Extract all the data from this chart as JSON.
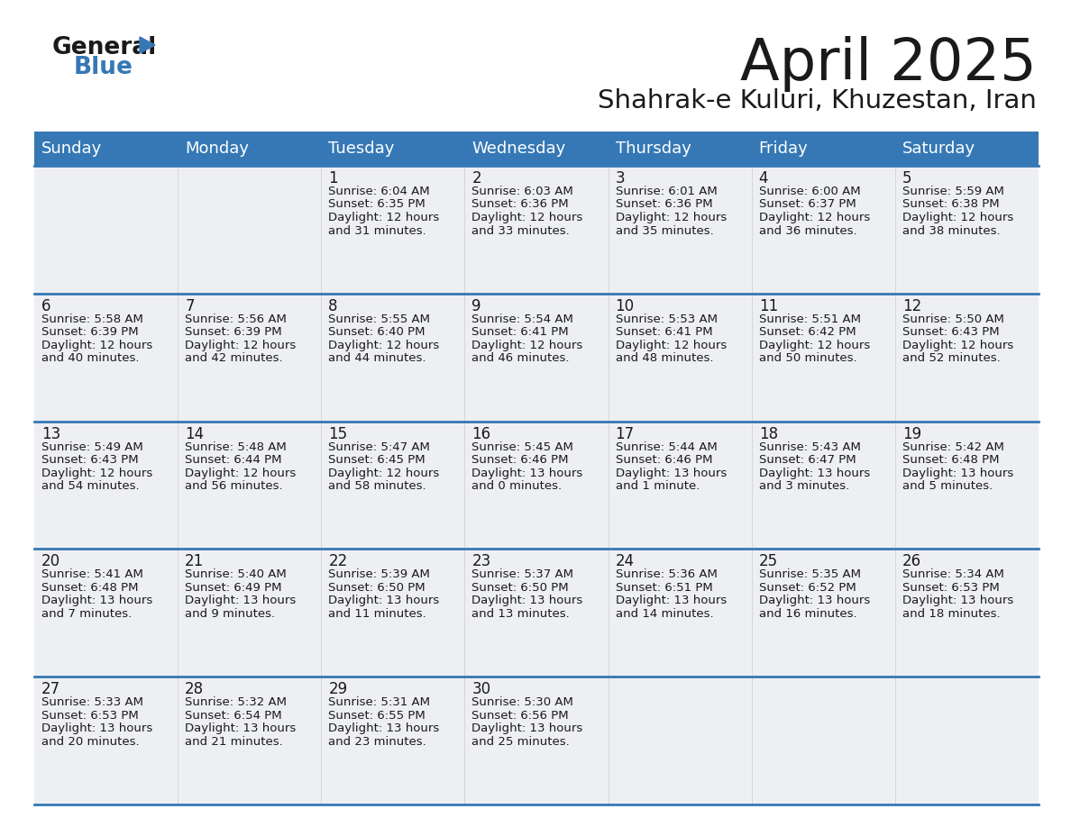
{
  "title": "April 2025",
  "subtitle": "Shahrak-e Kuluri, Khuzestan, Iran",
  "header_color": "#3578b5",
  "header_text_color": "#ffffff",
  "cell_bg_odd": "#edf1f7",
  "cell_bg_even": "#edf1f7",
  "border_color": "#3578b5",
  "text_color": "#1a1a1a",
  "days_of_week": [
    "Sunday",
    "Monday",
    "Tuesday",
    "Wednesday",
    "Thursday",
    "Friday",
    "Saturday"
  ],
  "logo_general_color": "#1a1a1a",
  "logo_blue_color": "#3578b5",
  "logo_triangle_color": "#3578b5",
  "weeks": [
    [
      {
        "day": "",
        "sunrise": "",
        "sunset": "",
        "daylight1": "",
        "daylight2": ""
      },
      {
        "day": "",
        "sunrise": "",
        "sunset": "",
        "daylight1": "",
        "daylight2": ""
      },
      {
        "day": "1",
        "sunrise": "Sunrise: 6:04 AM",
        "sunset": "Sunset: 6:35 PM",
        "daylight1": "Daylight: 12 hours",
        "daylight2": "and 31 minutes."
      },
      {
        "day": "2",
        "sunrise": "Sunrise: 6:03 AM",
        "sunset": "Sunset: 6:36 PM",
        "daylight1": "Daylight: 12 hours",
        "daylight2": "and 33 minutes."
      },
      {
        "day": "3",
        "sunrise": "Sunrise: 6:01 AM",
        "sunset": "Sunset: 6:36 PM",
        "daylight1": "Daylight: 12 hours",
        "daylight2": "and 35 minutes."
      },
      {
        "day": "4",
        "sunrise": "Sunrise: 6:00 AM",
        "sunset": "Sunset: 6:37 PM",
        "daylight1": "Daylight: 12 hours",
        "daylight2": "and 36 minutes."
      },
      {
        "day": "5",
        "sunrise": "Sunrise: 5:59 AM",
        "sunset": "Sunset: 6:38 PM",
        "daylight1": "Daylight: 12 hours",
        "daylight2": "and 38 minutes."
      }
    ],
    [
      {
        "day": "6",
        "sunrise": "Sunrise: 5:58 AM",
        "sunset": "Sunset: 6:39 PM",
        "daylight1": "Daylight: 12 hours",
        "daylight2": "and 40 minutes."
      },
      {
        "day": "7",
        "sunrise": "Sunrise: 5:56 AM",
        "sunset": "Sunset: 6:39 PM",
        "daylight1": "Daylight: 12 hours",
        "daylight2": "and 42 minutes."
      },
      {
        "day": "8",
        "sunrise": "Sunrise: 5:55 AM",
        "sunset": "Sunset: 6:40 PM",
        "daylight1": "Daylight: 12 hours",
        "daylight2": "and 44 minutes."
      },
      {
        "day": "9",
        "sunrise": "Sunrise: 5:54 AM",
        "sunset": "Sunset: 6:41 PM",
        "daylight1": "Daylight: 12 hours",
        "daylight2": "and 46 minutes."
      },
      {
        "day": "10",
        "sunrise": "Sunrise: 5:53 AM",
        "sunset": "Sunset: 6:41 PM",
        "daylight1": "Daylight: 12 hours",
        "daylight2": "and 48 minutes."
      },
      {
        "day": "11",
        "sunrise": "Sunrise: 5:51 AM",
        "sunset": "Sunset: 6:42 PM",
        "daylight1": "Daylight: 12 hours",
        "daylight2": "and 50 minutes."
      },
      {
        "day": "12",
        "sunrise": "Sunrise: 5:50 AM",
        "sunset": "Sunset: 6:43 PM",
        "daylight1": "Daylight: 12 hours",
        "daylight2": "and 52 minutes."
      }
    ],
    [
      {
        "day": "13",
        "sunrise": "Sunrise: 5:49 AM",
        "sunset": "Sunset: 6:43 PM",
        "daylight1": "Daylight: 12 hours",
        "daylight2": "and 54 minutes."
      },
      {
        "day": "14",
        "sunrise": "Sunrise: 5:48 AM",
        "sunset": "Sunset: 6:44 PM",
        "daylight1": "Daylight: 12 hours",
        "daylight2": "and 56 minutes."
      },
      {
        "day": "15",
        "sunrise": "Sunrise: 5:47 AM",
        "sunset": "Sunset: 6:45 PM",
        "daylight1": "Daylight: 12 hours",
        "daylight2": "and 58 minutes."
      },
      {
        "day": "16",
        "sunrise": "Sunrise: 5:45 AM",
        "sunset": "Sunset: 6:46 PM",
        "daylight1": "Daylight: 13 hours",
        "daylight2": "and 0 minutes."
      },
      {
        "day": "17",
        "sunrise": "Sunrise: 5:44 AM",
        "sunset": "Sunset: 6:46 PM",
        "daylight1": "Daylight: 13 hours",
        "daylight2": "and 1 minute."
      },
      {
        "day": "18",
        "sunrise": "Sunrise: 5:43 AM",
        "sunset": "Sunset: 6:47 PM",
        "daylight1": "Daylight: 13 hours",
        "daylight2": "and 3 minutes."
      },
      {
        "day": "19",
        "sunrise": "Sunrise: 5:42 AM",
        "sunset": "Sunset: 6:48 PM",
        "daylight1": "Daylight: 13 hours",
        "daylight2": "and 5 minutes."
      }
    ],
    [
      {
        "day": "20",
        "sunrise": "Sunrise: 5:41 AM",
        "sunset": "Sunset: 6:48 PM",
        "daylight1": "Daylight: 13 hours",
        "daylight2": "and 7 minutes."
      },
      {
        "day": "21",
        "sunrise": "Sunrise: 5:40 AM",
        "sunset": "Sunset: 6:49 PM",
        "daylight1": "Daylight: 13 hours",
        "daylight2": "and 9 minutes."
      },
      {
        "day": "22",
        "sunrise": "Sunrise: 5:39 AM",
        "sunset": "Sunset: 6:50 PM",
        "daylight1": "Daylight: 13 hours",
        "daylight2": "and 11 minutes."
      },
      {
        "day": "23",
        "sunrise": "Sunrise: 5:37 AM",
        "sunset": "Sunset: 6:50 PM",
        "daylight1": "Daylight: 13 hours",
        "daylight2": "and 13 minutes."
      },
      {
        "day": "24",
        "sunrise": "Sunrise: 5:36 AM",
        "sunset": "Sunset: 6:51 PM",
        "daylight1": "Daylight: 13 hours",
        "daylight2": "and 14 minutes."
      },
      {
        "day": "25",
        "sunrise": "Sunrise: 5:35 AM",
        "sunset": "Sunset: 6:52 PM",
        "daylight1": "Daylight: 13 hours",
        "daylight2": "and 16 minutes."
      },
      {
        "day": "26",
        "sunrise": "Sunrise: 5:34 AM",
        "sunset": "Sunset: 6:53 PM",
        "daylight1": "Daylight: 13 hours",
        "daylight2": "and 18 minutes."
      }
    ],
    [
      {
        "day": "27",
        "sunrise": "Sunrise: 5:33 AM",
        "sunset": "Sunset: 6:53 PM",
        "daylight1": "Daylight: 13 hours",
        "daylight2": "and 20 minutes."
      },
      {
        "day": "28",
        "sunrise": "Sunrise: 5:32 AM",
        "sunset": "Sunset: 6:54 PM",
        "daylight1": "Daylight: 13 hours",
        "daylight2": "and 21 minutes."
      },
      {
        "day": "29",
        "sunrise": "Sunrise: 5:31 AM",
        "sunset": "Sunset: 6:55 PM",
        "daylight1": "Daylight: 13 hours",
        "daylight2": "and 23 minutes."
      },
      {
        "day": "30",
        "sunrise": "Sunrise: 5:30 AM",
        "sunset": "Sunset: 6:56 PM",
        "daylight1": "Daylight: 13 hours",
        "daylight2": "and 25 minutes."
      },
      {
        "day": "",
        "sunrise": "",
        "sunset": "",
        "daylight1": "",
        "daylight2": ""
      },
      {
        "day": "",
        "sunrise": "",
        "sunset": "",
        "daylight1": "",
        "daylight2": ""
      },
      {
        "day": "",
        "sunrise": "",
        "sunset": "",
        "daylight1": "",
        "daylight2": ""
      }
    ]
  ]
}
